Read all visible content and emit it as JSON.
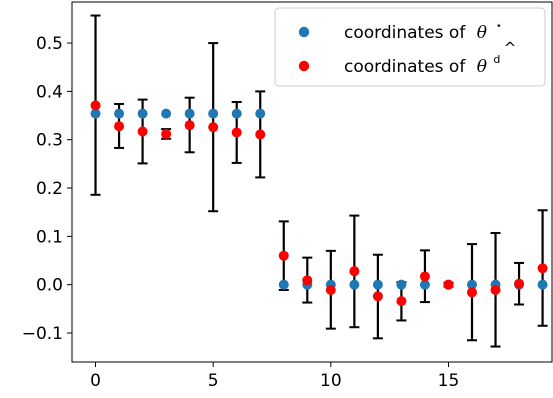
{
  "chart_data": {
    "type": "scatter",
    "x": [
      0,
      1,
      2,
      3,
      4,
      5,
      6,
      7,
      8,
      9,
      10,
      11,
      12,
      13,
      14,
      15,
      16,
      17,
      18,
      19
    ],
    "series": [
      {
        "name": "coordinates of θ*",
        "color": "#1f77b4",
        "values": [
          0.354,
          0.354,
          0.354,
          0.354,
          0.354,
          0.354,
          0.354,
          0.354,
          0,
          0,
          0,
          0,
          0,
          0,
          0,
          0,
          0,
          0,
          0,
          0
        ]
      },
      {
        "name": "coordinates of θ̂d",
        "color": "#ff0000",
        "values": [
          0.371,
          0.328,
          0.317,
          0.312,
          0.33,
          0.326,
          0.315,
          0.311,
          0.06,
          0.009,
          -0.011,
          0.028,
          -0.024,
          -0.034,
          0.017,
          0.0,
          -0.016,
          -0.011,
          0.002,
          0.034
        ],
        "error_low": [
          0.186,
          0.283,
          0.251,
          0.302,
          0.274,
          0.152,
          0.252,
          0.222,
          -0.011,
          -0.037,
          -0.091,
          -0.088,
          -0.111,
          -0.074,
          -0.036,
          -0.004,
          -0.115,
          -0.128,
          -0.041,
          -0.085
        ],
        "error_high": [
          0.557,
          0.374,
          0.383,
          0.322,
          0.387,
          0.5,
          0.378,
          0.4,
          0.131,
          0.056,
          0.07,
          0.143,
          0.062,
          0.005,
          0.071,
          0.004,
          0.084,
          0.107,
          0.045,
          0.154
        ]
      }
    ],
    "xticks": [
      0,
      5,
      10,
      15
    ],
    "xtick_labels": [
      "0",
      "5",
      "10",
      "15"
    ],
    "yticks": [
      -0.1,
      0.0,
      0.1,
      0.2,
      0.3,
      0.4,
      0.5
    ],
    "ytick_labels": [
      "−0.1",
      "0.0",
      "0.1",
      "0.2",
      "0.3",
      "0.4",
      "0.5"
    ],
    "xlim": [
      -1,
      19.4
    ],
    "ylim": [
      -0.16,
      0.585
    ],
    "error_bar_color": "#000000",
    "grid": false,
    "legend_position": "upper right",
    "legend": {
      "prefix": "coordinates of",
      "symbol1": "θ",
      "symbol1_sup": "⋆",
      "symbol2": "θ",
      "symbol2_hat": "^",
      "symbol2_sup": "d"
    }
  }
}
